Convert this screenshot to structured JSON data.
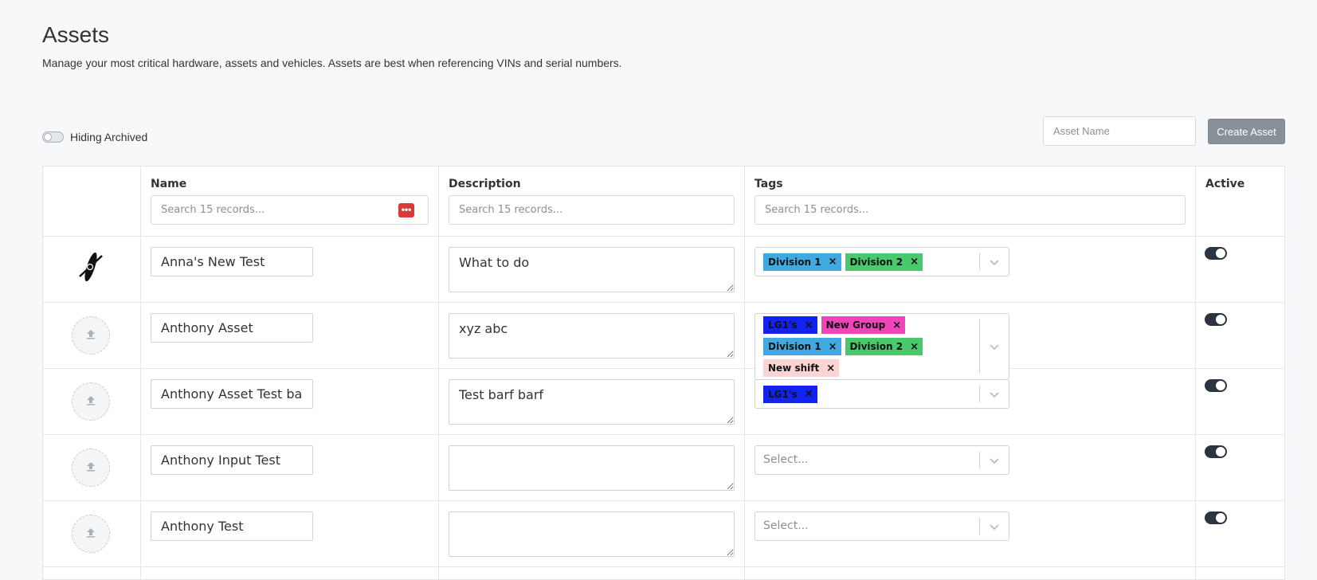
{
  "header": {
    "title": "Assets",
    "subtitle": "Manage your most critical hardware, assets and vehicles. Assets are best when referencing VINs and serial numbers."
  },
  "toolbar": {
    "archive_label": "Hiding Archived",
    "asset_name_placeholder": "Asset Name",
    "create_label": "Create Asset"
  },
  "table": {
    "columns": {
      "name": "Name",
      "description": "Description",
      "tags": "Tags",
      "active": "Active"
    },
    "search_placeholder": "Search 15 records...",
    "select_placeholder": "Select...",
    "rows": [
      {
        "name": "Anna's New Test",
        "description": "What to do",
        "image": "kayak-icon",
        "active": true,
        "tags": [
          {
            "label": "Division 1",
            "color": "#3fa9e0"
          },
          {
            "label": "Division 2",
            "color": "#49c96b"
          }
        ]
      },
      {
        "name": "Anthony Asset",
        "description": "xyz abc",
        "image": "upload-icon",
        "active": true,
        "tags": [
          {
            "label": "LG1's",
            "color": "#1222ef"
          },
          {
            "label": "New Group",
            "color": "#ef45b9"
          },
          {
            "label": "Division 1",
            "color": "#3fa9e0"
          },
          {
            "label": "Division 2",
            "color": "#49c96b"
          },
          {
            "label": "New shift",
            "color": "#fdd4d4"
          }
        ]
      },
      {
        "name": "Anthony Asset Test barf",
        "description": "Test barf barf",
        "image": "upload-icon",
        "active": true,
        "tags": [
          {
            "label": "LG1's",
            "color": "#1222ef"
          }
        ]
      },
      {
        "name": "Anthony Input Test",
        "description": "",
        "image": "upload-icon",
        "active": true,
        "tags": []
      },
      {
        "name": "Anthony Test",
        "description": "",
        "image": "upload-icon",
        "active": true,
        "tags": []
      }
    ]
  },
  "colors": {
    "accent_button": "#8a9099",
    "toggle_on": "#2b3441",
    "error_badge": "#d83a3a"
  }
}
